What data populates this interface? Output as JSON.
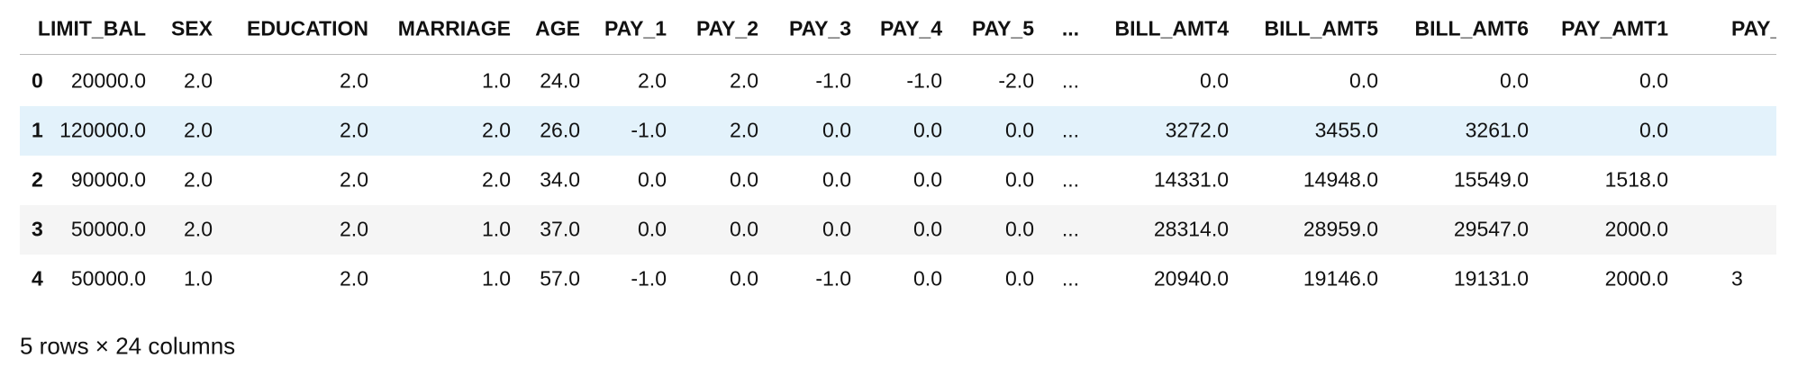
{
  "table": {
    "columns": [
      "LIMIT_BAL",
      "SEX",
      "EDUCATION",
      "MARRIAGE",
      "AGE",
      "PAY_1",
      "PAY_2",
      "PAY_3",
      "PAY_4",
      "PAY_5",
      "...",
      "BILL_AMT4",
      "BILL_AMT5",
      "BILL_AMT6",
      "PAY_AMT1",
      "PAY_"
    ],
    "rows": [
      {
        "index": "0",
        "cells": [
          "20000.0",
          "2.0",
          "2.0",
          "1.0",
          "24.0",
          "2.0",
          "2.0",
          "-1.0",
          "-1.0",
          "-2.0",
          "...",
          "0.0",
          "0.0",
          "0.0",
          "0.0",
          null
        ]
      },
      {
        "index": "1",
        "cells": [
          "120000.0",
          "2.0",
          "2.0",
          "2.0",
          "26.0",
          "-1.0",
          "2.0",
          "0.0",
          "0.0",
          "0.0",
          "...",
          "3272.0",
          "3455.0",
          "3261.0",
          "0.0",
          null
        ]
      },
      {
        "index": "2",
        "cells": [
          "90000.0",
          "2.0",
          "2.0",
          "2.0",
          "34.0",
          "0.0",
          "0.0",
          "0.0",
          "0.0",
          "0.0",
          "...",
          "14331.0",
          "14948.0",
          "15549.0",
          "1518.0",
          null
        ]
      },
      {
        "index": "3",
        "cells": [
          "50000.0",
          "2.0",
          "2.0",
          "1.0",
          "37.0",
          "0.0",
          "0.0",
          "0.0",
          "0.0",
          "0.0",
          "...",
          "28314.0",
          "28959.0",
          "29547.0",
          "2000.0",
          null
        ]
      },
      {
        "index": "4",
        "cells": [
          "50000.0",
          "1.0",
          "2.0",
          "1.0",
          "57.0",
          "-1.0",
          "0.0",
          "-1.0",
          "0.0",
          "0.0",
          "...",
          "20940.0",
          "19146.0",
          "19131.0",
          "2000.0",
          "3"
        ]
      }
    ]
  },
  "footer": "5 rows × 24 columns"
}
